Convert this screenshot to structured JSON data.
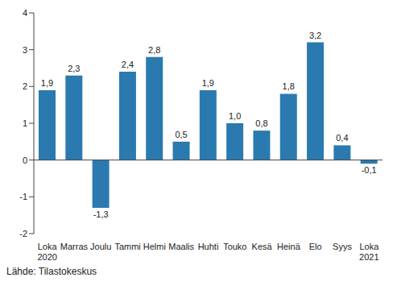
{
  "chart_data": {
    "type": "bar",
    "annotations": [
      "Lähde: Tilastokeskus"
    ],
    "categories": [
      "Loka 2020",
      "Marras",
      "Joulu",
      "Tammi",
      "Helmi",
      "Maalis",
      "Huhti",
      "Touko",
      "Kesä",
      "Heinä",
      "Elo",
      "Syys",
      "Loka 2021"
    ],
    "values": [
      1.9,
      2.3,
      -1.3,
      2.4,
      2.8,
      0.5,
      1.9,
      1.0,
      0.8,
      1.8,
      3.2,
      0.4,
      -0.1
    ],
    "value_labels": [
      "1,9",
      "2,3",
      "-1,3",
      "2,4",
      "2,8",
      "0,5",
      "1,9",
      "1,0",
      "0,8",
      "1,8",
      "3,2",
      "0,4",
      "-0,1"
    ],
    "color": "#2a7ab0",
    "ylim": [
      -2,
      4
    ],
    "yticks": [
      -2,
      -1,
      0,
      1,
      2,
      3,
      4
    ],
    "grid": false,
    "data_labels": true
  }
}
